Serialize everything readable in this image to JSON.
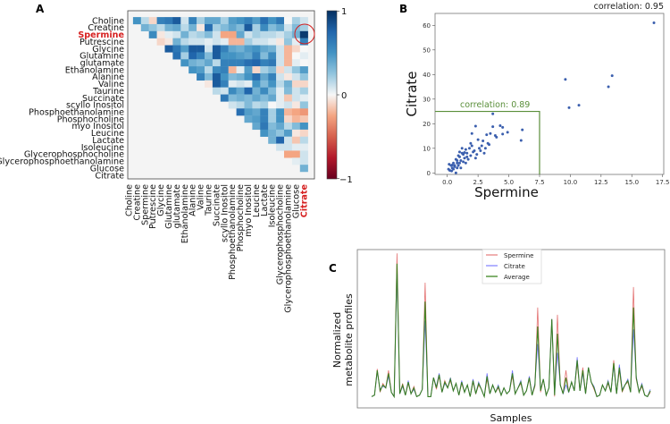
{
  "chart_data": [
    {
      "type": "heatmap",
      "panel_label": "A",
      "labels": [
        "Choline",
        "Creatine",
        "Spermine",
        "Putrescine",
        "Glycine",
        "Glutamine",
        "glutamate",
        "Ethanolamine",
        "Alanine",
        "Valine",
        "Taurine",
        "Succinate",
        "scyllo Inositol",
        "Phosphoethanolamine",
        "Phosphocholine",
        "myo Inositol",
        "Leucine",
        "Lactate",
        "Isoleucine",
        "Glycerophosphocholine",
        "Glycerophosphoethanolamine",
        "Glucose",
        "Citrate"
      ],
      "highlight_labels": [
        "Spermine",
        "Citrate"
      ],
      "highlight_color": "#d62020",
      "colorbar": {
        "ticks": [
          "1",
          "0",
          "−1"
        ],
        "range": [
          -1,
          1
        ],
        "colormap": "RdBu"
      },
      "upper_triangle_values": [
        [
          0.5,
          0.15,
          -0.1,
          0.6,
          0.65,
          0.8,
          0.1,
          0.6,
          0.2,
          0.4,
          0.4,
          0.2,
          0.45,
          0.5,
          0.6,
          0.45,
          0.7,
          0.5,
          0.65,
          0,
          0.2,
          0.1
        ],
        [
          0.35,
          0.25,
          0.15,
          0.35,
          0.4,
          0.15,
          0.35,
          -0.05,
          0.7,
          0.2,
          0.3,
          0.4,
          0.3,
          0.8,
          0.2,
          0.55,
          0.3,
          0.4,
          0.1,
          0.3,
          0.2
        ],
        [
          0.55,
          -0.05,
          0.05,
          0.1,
          0.35,
          0.15,
          0.2,
          0.3,
          0.1,
          -0.25,
          -0.25,
          0.4,
          0.1,
          0.2,
          0.15,
          0.15,
          0.1,
          0.2,
          0.35,
          0.95
        ],
        [
          -0.1,
          -0.05,
          0.35,
          0.15,
          0.1,
          0.1,
          0.05,
          0.1,
          0.05,
          -0.2,
          -0.2,
          0.2,
          0.1,
          0.1,
          0.05,
          -0.05,
          0.25,
          0.05,
          0.6
        ],
        [
          0.8,
          0.65,
          0.45,
          0.8,
          0.8,
          0.1,
          0.8,
          0.6,
          0.4,
          0.35,
          0.45,
          0.5,
          0.4,
          0.35,
          0.1,
          -0.2,
          -0.1,
          0
        ],
        [
          0.7,
          0.2,
          0.75,
          0.6,
          0.3,
          0.8,
          0.5,
          0.5,
          0.45,
          0.4,
          0.6,
          0.3,
          0.55,
          0.1,
          -0.2,
          0,
          0.05
        ],
        [
          0.5,
          0.35,
          0.3,
          0.4,
          0.15,
          0.6,
          0.6,
          0.6,
          0.7,
          0.75,
          0.6,
          0.65,
          0.1,
          -0.2,
          0.05,
          0
        ],
        [
          0.5,
          0.45,
          0.15,
          0.55,
          0.6,
          -0.2,
          0.05,
          0.45,
          -0.1,
          0.2,
          0.3,
          -0.1,
          0.1,
          0.25,
          0.45
        ],
        [
          0.6,
          0.3,
          0.8,
          0.5,
          0.3,
          0.35,
          0.5,
          0.7,
          0.4,
          0.6,
          0.1,
          -0.05,
          0.1,
          0.25
        ],
        [
          -0.05,
          0.8,
          0.6,
          0.05,
          0.1,
          0.05,
          0.5,
          0.3,
          0.5,
          0.15,
          0.35,
          -0.1,
          -0.1
        ],
        [
          0.15,
          0.1,
          0.55,
          0.4,
          0.75,
          0.35,
          0.55,
          0.3,
          0.05,
          0.3,
          0.1,
          0.2
        ],
        [
          0.65,
          0.3,
          0.35,
          0.3,
          0.4,
          0.3,
          0.4,
          0.05,
          -0.15,
          0.1,
          0.05
        ],
        [
          0.1,
          0.15,
          0.3,
          0.15,
          0.2,
          0,
          0.05,
          0.1,
          -0.05,
          0.25
        ],
        [
          0.7,
          0.45,
          0.4,
          0.6,
          0.2,
          0.5,
          -0.2,
          -0.25,
          -0.3
        ],
        [
          0.4,
          0.45,
          0.6,
          0.2,
          0.5,
          -0.1,
          -0.2,
          -0.15
        ],
        [
          0.4,
          0.65,
          0.3,
          0.4,
          0.15,
          0.3,
          0.5
        ],
        [
          0.5,
          0.35,
          0.25,
          0.45,
          -0.05,
          -0.1
        ],
        [
          0.35,
          0.75,
          0.1,
          -0.15,
          0.15
        ],
        [
          0.1,
          0.1,
          0.05,
          0.05
        ],
        [
          -0.25,
          -0.25,
          0.1
        ],
        [
          0.05,
          0.1
        ],
        [
          0.35
        ],
        []
      ]
    },
    {
      "type": "scatter",
      "panel_label": "B",
      "xlabel": "Spermine",
      "ylabel": "Citrate",
      "xlim": [
        -0.9,
        17.6
      ],
      "ylim": [
        -1,
        64.7
      ],
      "xticks": [
        "0.0",
        "2.5",
        "5.0",
        "7.5",
        "10.0",
        "12.5",
        "15.0",
        "17.5"
      ],
      "yticks": [
        "0",
        "10",
        "20",
        "30",
        "40",
        "50",
        "60"
      ],
      "annotation_all": "correlation: 0.95",
      "annotation_subset": "correlation: 0.89",
      "subset_box": {
        "x_max": 7.5,
        "y_max": 25
      },
      "point_color": "#3b5fae",
      "box_color": "#5a8f3a",
      "points": [
        [
          9.6,
          38
        ],
        [
          9.9,
          26.5
        ],
        [
          10.7,
          27.5
        ],
        [
          13.1,
          35
        ],
        [
          13.4,
          39.5
        ],
        [
          16.8,
          61
        ],
        [
          3.7,
          24
        ],
        [
          6.1,
          17.5
        ],
        [
          6.0,
          13.2
        ],
        [
          4.9,
          16.5
        ],
        [
          4.5,
          18.5
        ],
        [
          4.3,
          19.2
        ],
        [
          4.5,
          15.8
        ],
        [
          3.9,
          15.2
        ],
        [
          4,
          14.5
        ],
        [
          3.7,
          18.8
        ],
        [
          3.5,
          16
        ],
        [
          3.2,
          15.5
        ],
        [
          3.0,
          8
        ],
        [
          3.1,
          10
        ],
        [
          3.3,
          12
        ],
        [
          2.3,
          19
        ],
        [
          2.0,
          16
        ],
        [
          2.5,
          13.5
        ],
        [
          2.8,
          11
        ],
        [
          2.6,
          10
        ],
        [
          2.2,
          9
        ],
        [
          2.0,
          11
        ],
        [
          1.8,
          10
        ],
        [
          1.9,
          7
        ],
        [
          1.6,
          8
        ],
        [
          1.5,
          9.5
        ],
        [
          1.4,
          6
        ],
        [
          1.3,
          7.5
        ],
        [
          1.2,
          8
        ],
        [
          1.1,
          5
        ],
        [
          1.0,
          6.5
        ],
        [
          0.9,
          7
        ],
        [
          0.8,
          4
        ],
        [
          0.7,
          5.5
        ],
        [
          0.6,
          3
        ],
        [
          0.5,
          4
        ],
        [
          0.4,
          2
        ],
        [
          0.3,
          3
        ],
        [
          0.2,
          1
        ],
        [
          0.1,
          1.5
        ],
        [
          0.15,
          3.5
        ],
        [
          0.7,
          0
        ],
        [
          1.1,
          2
        ],
        [
          0.5,
          1.5
        ],
        [
          0.9,
          3
        ],
        [
          1.3,
          4.5
        ],
        [
          1.7,
          5.5
        ],
        [
          2.4,
          7.5
        ],
        [
          2.7,
          9
        ],
        [
          1.2,
          10
        ],
        [
          1.6,
          6.5
        ],
        [
          0.8,
          5
        ],
        [
          1.0,
          4
        ],
        [
          0.6,
          2.5
        ],
        [
          2.1,
          8.5
        ],
        [
          2.9,
          13
        ],
        [
          3.4,
          11.5
        ],
        [
          1.5,
          4
        ],
        [
          0.35,
          0.8
        ],
        [
          1.9,
          12
        ],
        [
          2.3,
          6
        ],
        [
          1.0,
          8.5
        ],
        [
          0.4,
          3.2
        ],
        [
          1.4,
          8.3
        ],
        [
          0.8,
          2
        ]
      ]
    },
    {
      "type": "line",
      "panel_label": "C",
      "xlabel": "Samples",
      "ylabel": [
        "Normalized",
        "metabolite profiles"
      ],
      "legend_position": "top-center",
      "series": [
        {
          "name": "Spermine",
          "color": "#e06060",
          "values": [
            0.02,
            0.03,
            0.21,
            0.05,
            0.11,
            0.08,
            0.2,
            0.05,
            0.02,
            1.0,
            0.04,
            0.11,
            0.03,
            0.11,
            0.04,
            0.09,
            0.02,
            0.03,
            0.07,
            0.8,
            0.02,
            0.02,
            0.15,
            0.07,
            0.16,
            0.05,
            0.13,
            0.08,
            0.13,
            0.06,
            0.11,
            0.03,
            0.11,
            0.05,
            0.1,
            0.02,
            0.12,
            0.04,
            0.1,
            0.07,
            0.02,
            0.14,
            0.04,
            0.1,
            0.05,
            0.08,
            0.03,
            0.08,
            0.04,
            0.06,
            0.16,
            0.04,
            0.08,
            0.11,
            0.03,
            0.06,
            0.14,
            0.03,
            0.09,
            0.63,
            0.05,
            0.14,
            0.03,
            0.08,
            0.55,
            0.02,
            0.58,
            0.1,
            0.04,
            0.2,
            0.05,
            0.12,
            0.06,
            0.25,
            0.06,
            0.22,
            0.04,
            0.22,
            0.12,
            0.07,
            0.02,
            0.03,
            0.1,
            0.06,
            0.11,
            0.05,
            0.27,
            0.04,
            0.2,
            0.05,
            0.1,
            0.12,
            0.05,
            0.77,
            0.14,
            0.05,
            0.09,
            0.03,
            0.02,
            0.05
          ]
        },
        {
          "name": "Citrate",
          "color": "#6666ff",
          "values": [
            0.02,
            0.03,
            0.19,
            0.07,
            0.09,
            0.08,
            0.16,
            0.05,
            0.02,
            0.86,
            0.04,
            0.09,
            0.03,
            0.13,
            0.04,
            0.07,
            0.02,
            0.03,
            0.07,
            0.54,
            0.02,
            0.02,
            0.15,
            0.09,
            0.18,
            0.05,
            0.11,
            0.08,
            0.15,
            0.06,
            0.11,
            0.03,
            0.13,
            0.05,
            0.1,
            0.02,
            0.14,
            0.04,
            0.12,
            0.07,
            0.02,
            0.18,
            0.04,
            0.1,
            0.05,
            0.1,
            0.03,
            0.08,
            0.04,
            0.06,
            0.2,
            0.04,
            0.08,
            0.13,
            0.03,
            0.06,
            0.16,
            0.03,
            0.11,
            0.38,
            0.07,
            0.14,
            0.03,
            0.08,
            0.55,
            0.04,
            0.32,
            0.1,
            0.04,
            0.1,
            0.05,
            0.12,
            0.06,
            0.29,
            0.06,
            0.18,
            0.04,
            0.22,
            0.12,
            0.09,
            0.02,
            0.03,
            0.1,
            0.06,
            0.13,
            0.05,
            0.23,
            0.04,
            0.24,
            0.07,
            0.1,
            0.14,
            0.05,
            0.48,
            0.16,
            0.05,
            0.11,
            0.03,
            0.02,
            0.07
          ]
        },
        {
          "name": "Average",
          "color": "#2e7d12",
          "values": [
            0.02,
            0.03,
            0.2,
            0.06,
            0.1,
            0.08,
            0.18,
            0.05,
            0.02,
            0.93,
            0.04,
            0.1,
            0.03,
            0.12,
            0.04,
            0.08,
            0.02,
            0.03,
            0.07,
            0.67,
            0.02,
            0.02,
            0.15,
            0.08,
            0.17,
            0.05,
            0.12,
            0.08,
            0.14,
            0.06,
            0.11,
            0.03,
            0.12,
            0.05,
            0.1,
            0.02,
            0.13,
            0.04,
            0.11,
            0.07,
            0.02,
            0.16,
            0.04,
            0.1,
            0.05,
            0.09,
            0.03,
            0.08,
            0.04,
            0.06,
            0.18,
            0.04,
            0.08,
            0.12,
            0.03,
            0.06,
            0.15,
            0.03,
            0.1,
            0.5,
            0.06,
            0.14,
            0.03,
            0.08,
            0.55,
            0.03,
            0.45,
            0.1,
            0.04,
            0.15,
            0.05,
            0.12,
            0.06,
            0.27,
            0.06,
            0.2,
            0.04,
            0.22,
            0.12,
            0.08,
            0.02,
            0.03,
            0.1,
            0.06,
            0.12,
            0.05,
            0.25,
            0.04,
            0.22,
            0.06,
            0.1,
            0.13,
            0.05,
            0.63,
            0.15,
            0.05,
            0.1,
            0.03,
            0.02,
            0.06
          ]
        }
      ]
    }
  ]
}
